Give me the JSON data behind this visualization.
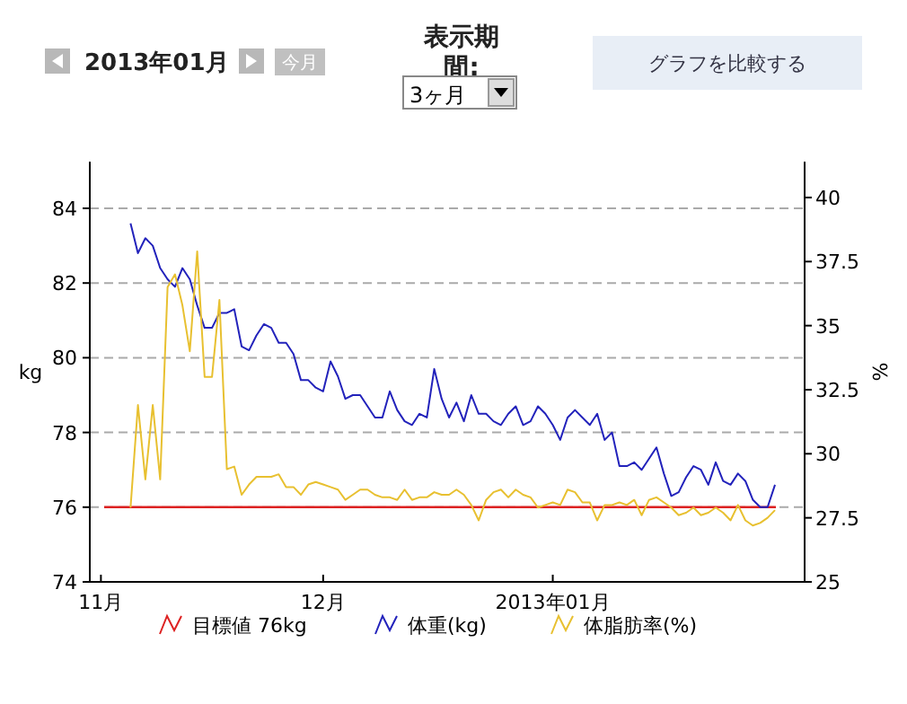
{
  "chart_data": {
    "type": "line",
    "ylabel": "kg",
    "y2label": "%",
    "annotations": [
      "2013年01月",
      "今月",
      "表示期間:",
      "3ヶ月",
      "グラフを比較する"
    ],
    "x": [
      "2012-11-05",
      "2012-11-06",
      "2012-11-07",
      "2012-11-08",
      "2012-11-09",
      "2012-11-10",
      "2012-11-11",
      "2012-11-12",
      "2012-11-13",
      "2012-11-14",
      "2012-11-15",
      "2012-11-16",
      "2012-11-17",
      "2012-11-18",
      "2012-11-19",
      "2012-11-20",
      "2012-11-21",
      "2012-11-22",
      "2012-11-23",
      "2012-11-24",
      "2012-11-25",
      "2012-11-26",
      "2012-11-27",
      "2012-11-28",
      "2012-11-29",
      "2012-11-30",
      "2012-12-01",
      "2012-12-02",
      "2012-12-03",
      "2012-12-04",
      "2012-12-05",
      "2012-12-06",
      "2012-12-07",
      "2012-12-08",
      "2012-12-09",
      "2012-12-10",
      "2012-12-11",
      "2012-12-12",
      "2012-12-13",
      "2012-12-14",
      "2012-12-15",
      "2012-12-16",
      "2012-12-17",
      "2012-12-18",
      "2012-12-19",
      "2012-12-20",
      "2012-12-21",
      "2012-12-22",
      "2012-12-23",
      "2012-12-24",
      "2012-12-25",
      "2012-12-26",
      "2012-12-27",
      "2012-12-28",
      "2012-12-29",
      "2012-12-30",
      "2012-12-31",
      "2013-01-01",
      "2013-01-02",
      "2013-01-03",
      "2013-01-04",
      "2013-01-05",
      "2013-01-06",
      "2013-01-07",
      "2013-01-08",
      "2013-01-09",
      "2013-01-10",
      "2013-01-11",
      "2013-01-12",
      "2013-01-13",
      "2013-01-14",
      "2013-01-15",
      "2013-01-16",
      "2013-01-17",
      "2013-01-18",
      "2013-01-19",
      "2013-01-20",
      "2013-01-21",
      "2013-01-22",
      "2013-01-23",
      "2013-01-24",
      "2013-01-25",
      "2013-01-26",
      "2013-01-27",
      "2013-01-28",
      "2013-01-29",
      "2013-01-30",
      "2013-01-31"
    ],
    "series": [
      {
        "name": "体重(kg)",
        "color": "#2222bb",
        "values": [
          83.6,
          82.8,
          83.2,
          83.0,
          82.4,
          82.1,
          81.9,
          82.4,
          82.1,
          81.4,
          80.8,
          80.8,
          81.2,
          81.2,
          81.3,
          80.3,
          80.2,
          80.6,
          80.9,
          80.8,
          80.4,
          80.4,
          80.1,
          79.4,
          79.4,
          79.2,
          79.1,
          79.9,
          79.5,
          78.9,
          79.0,
          79.0,
          78.7,
          78.4,
          78.4,
          79.1,
          78.6,
          78.3,
          78.2,
          78.5,
          78.4,
          79.7,
          78.9,
          78.4,
          78.8,
          78.3,
          79.0,
          78.5,
          78.5,
          78.3,
          78.2,
          78.5,
          78.7,
          78.2,
          78.3,
          78.7,
          78.5,
          78.2,
          77.8,
          78.4,
          78.6,
          78.4,
          78.2,
          78.5,
          77.8,
          78.0,
          77.1,
          77.1,
          77.2,
          77.0,
          77.3,
          77.6,
          76.9,
          76.3,
          76.4,
          76.8,
          77.1,
          77.0,
          76.6,
          77.2,
          76.7,
          76.6,
          76.9,
          76.7,
          76.2,
          76.0,
          76.0,
          76.6
        ]
      },
      {
        "name": "体脂肪率(%)",
        "color": "#e8c030",
        "axis": "y2",
        "values": [
          27.9,
          31.9,
          29.0,
          31.9,
          29.0,
          36.5,
          37.0,
          35.8,
          34.0,
          37.9,
          33.0,
          33.0,
          36.0,
          29.4,
          29.5,
          28.4,
          28.8,
          29.1,
          29.1,
          29.1,
          29.2,
          28.7,
          28.7,
          28.4,
          28.8,
          28.9,
          28.8,
          28.7,
          28.6,
          28.2,
          28.4,
          28.6,
          28.6,
          28.4,
          28.3,
          28.3,
          28.2,
          28.6,
          28.2,
          28.3,
          28.3,
          28.5,
          28.4,
          28.4,
          28.6,
          28.4,
          28.0,
          27.4,
          28.2,
          28.5,
          28.6,
          28.3,
          28.6,
          28.4,
          28.3,
          27.9,
          28.0,
          28.1,
          28.0,
          28.6,
          28.5,
          28.1,
          28.1,
          27.4,
          28.0,
          28.0,
          28.1,
          28.0,
          28.2,
          27.6,
          28.2,
          28.3,
          28.1,
          27.9,
          27.6,
          27.7,
          27.9,
          27.6,
          27.7,
          27.9,
          27.7,
          27.4,
          28.0,
          27.4,
          27.2,
          27.3,
          27.5,
          27.8
        ]
      }
    ],
    "ref_lines": [
      {
        "axis": "y",
        "value": 76,
        "label": "目標値 76kg",
        "color": "#dd2222"
      }
    ],
    "xlim": [
      "2012-10-30T12:00",
      "2013-02-04"
    ],
    "xticks": [
      {
        "value": "2012-11-01",
        "label": "11月"
      },
      {
        "value": "2012-12-01",
        "label": "12月"
      },
      {
        "value": "2013-01-01",
        "label": "2013年01月"
      }
    ],
    "ylim": [
      74,
      85.25
    ],
    "yticks": [
      74,
      76,
      78,
      80,
      82,
      84
    ],
    "y2lim": [
      25,
      41.4
    ],
    "y2ticks": [
      25,
      27.5,
      30,
      32.5,
      35,
      37.5,
      40
    ],
    "grid": "y",
    "legend": "bottom"
  }
}
